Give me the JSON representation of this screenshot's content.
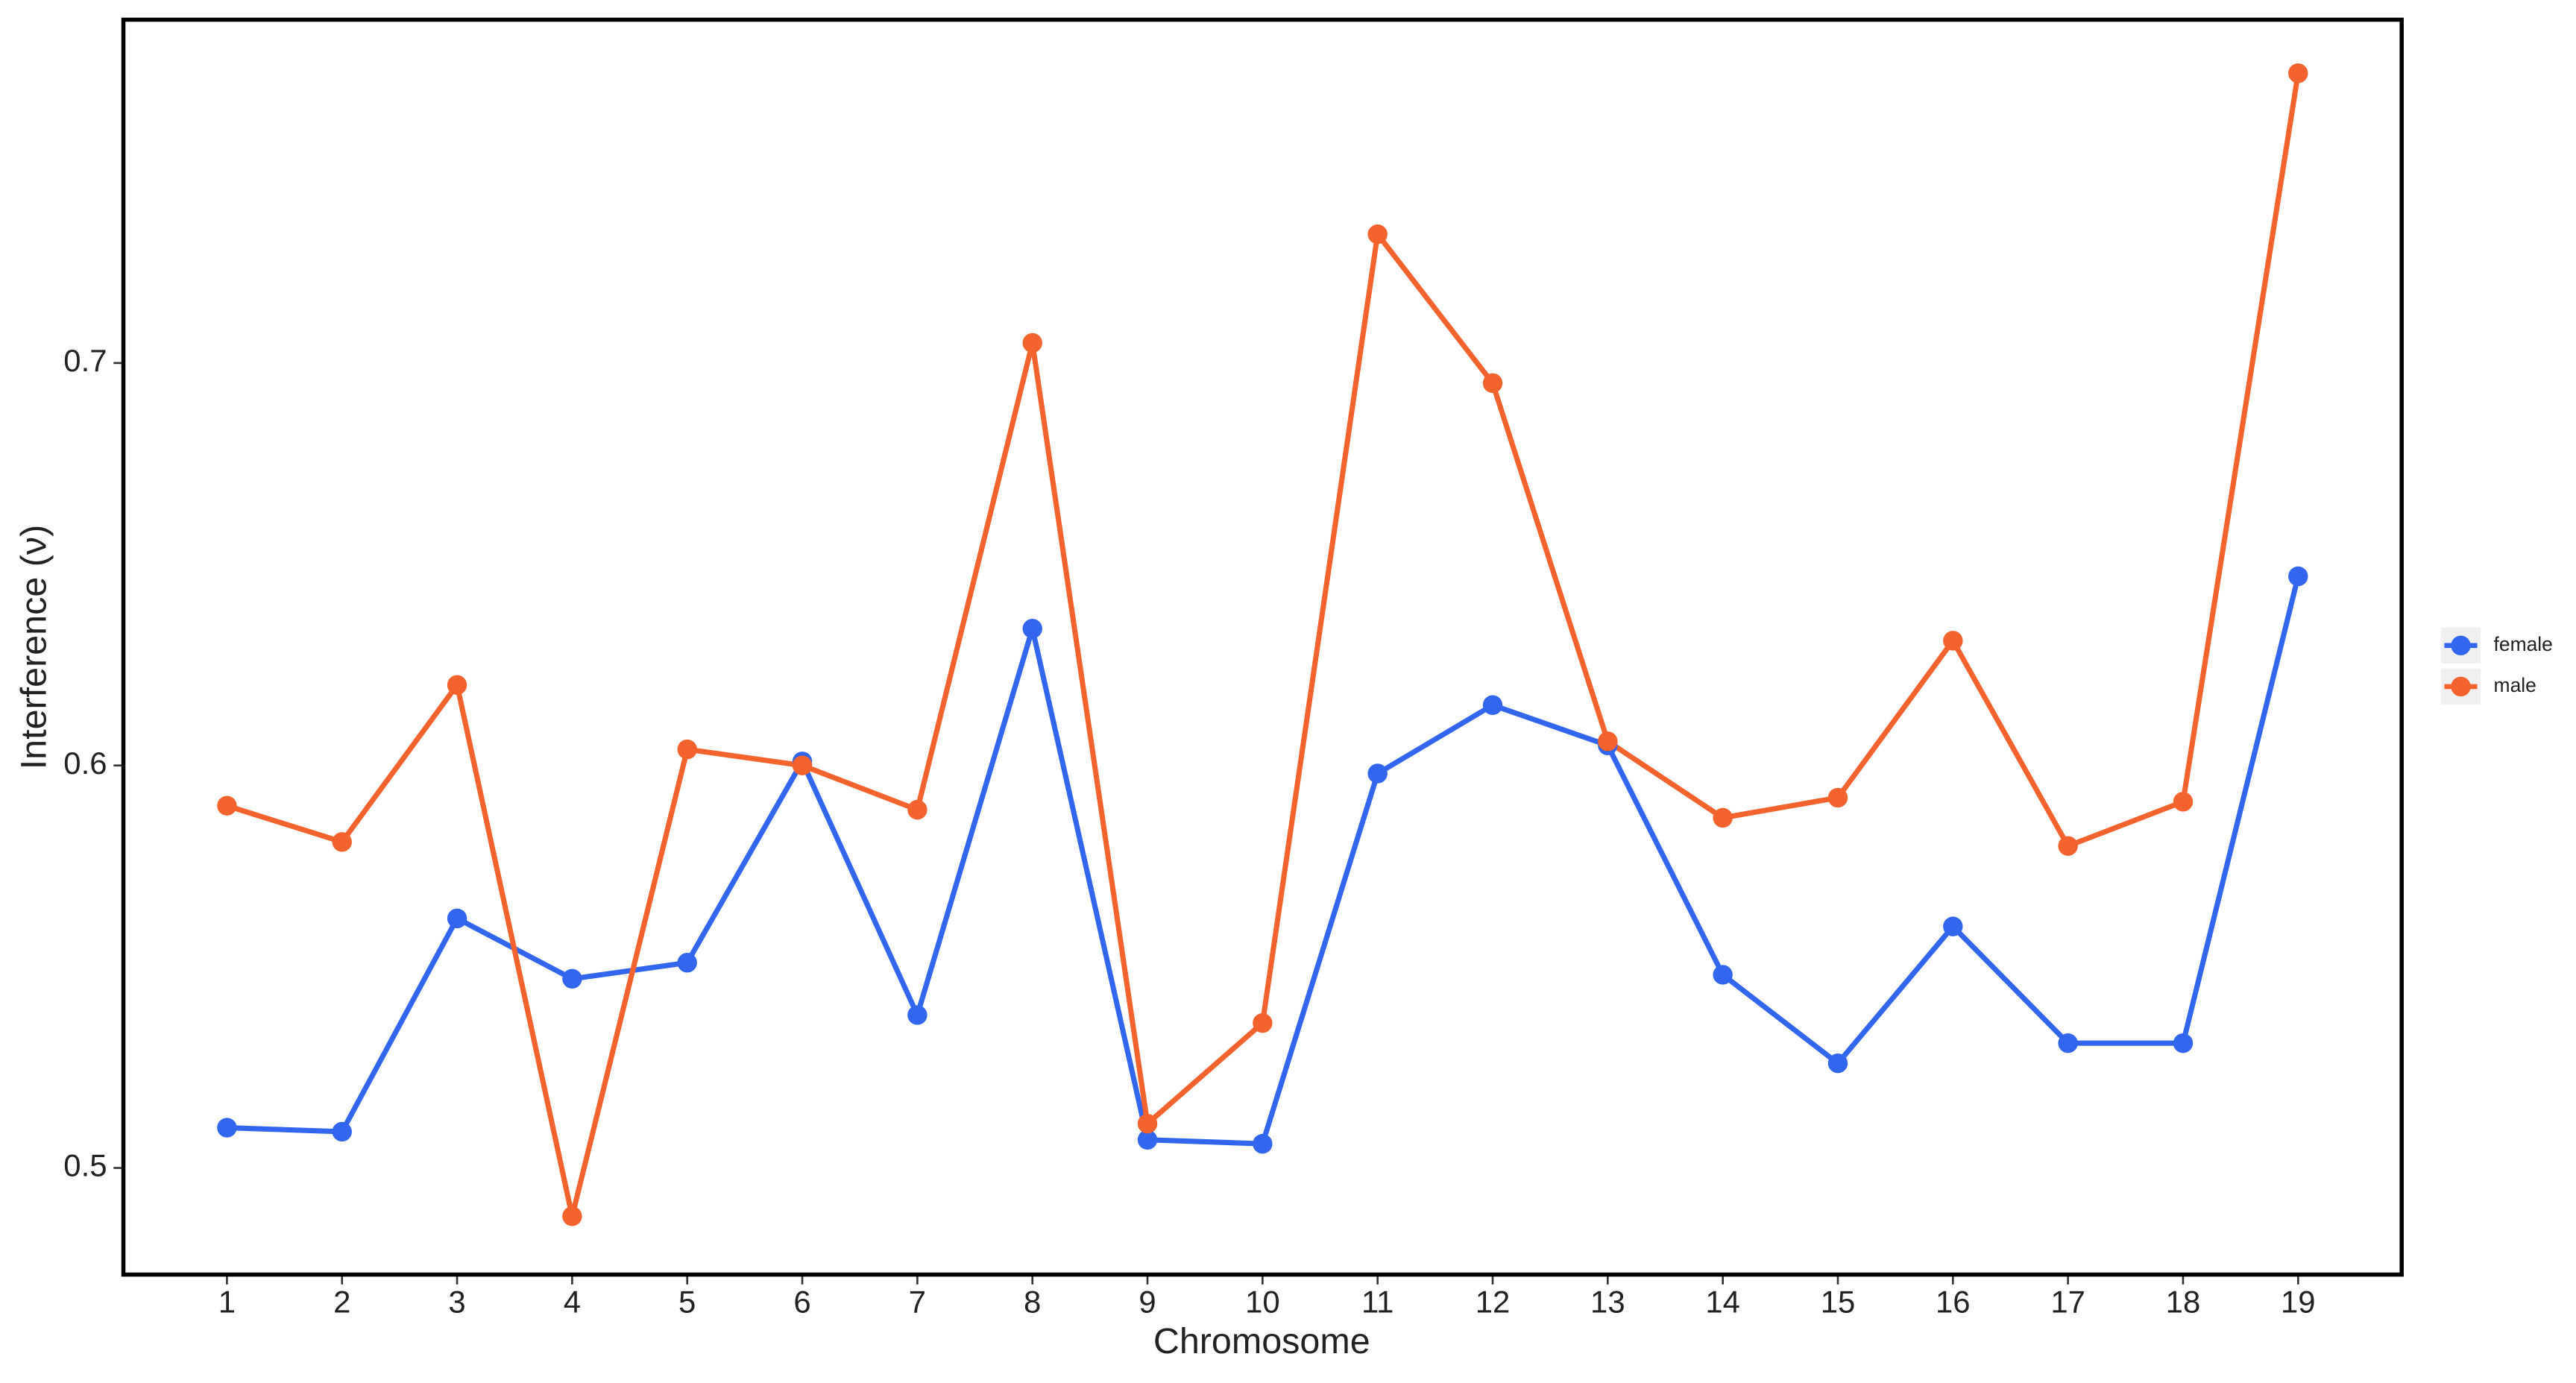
{
  "chart_data": {
    "type": "line",
    "x_label": "Chromosome",
    "y_label": "Interference (ν)",
    "categories": [
      "1",
      "2",
      "3",
      "4",
      "5",
      "6",
      "7",
      "8",
      "9",
      "10",
      "11",
      "12",
      "13",
      "14",
      "15",
      "16",
      "17",
      "18",
      "19"
    ],
    "series": [
      {
        "name": "female",
        "color": "#3366ee",
        "values": [
          0.51,
          0.509,
          0.562,
          0.547,
          0.551,
          0.601,
          0.538,
          0.634,
          0.507,
          0.506,
          0.598,
          0.615,
          0.605,
          0.548,
          0.526,
          0.56,
          0.531,
          0.531,
          0.647
        ]
      },
      {
        "name": "male",
        "color": "#f4622d",
        "values": [
          0.59,
          0.581,
          0.62,
          0.488,
          0.604,
          0.6,
          0.589,
          0.705,
          0.511,
          0.536,
          0.732,
          0.695,
          0.606,
          0.587,
          0.592,
          0.631,
          0.58,
          0.591,
          0.772
        ]
      }
    ],
    "ylim": [
      0.4735,
      0.7853
    ],
    "yticks": [
      0.5,
      0.6,
      0.7
    ],
    "grid": false,
    "legend_position": "right"
  }
}
